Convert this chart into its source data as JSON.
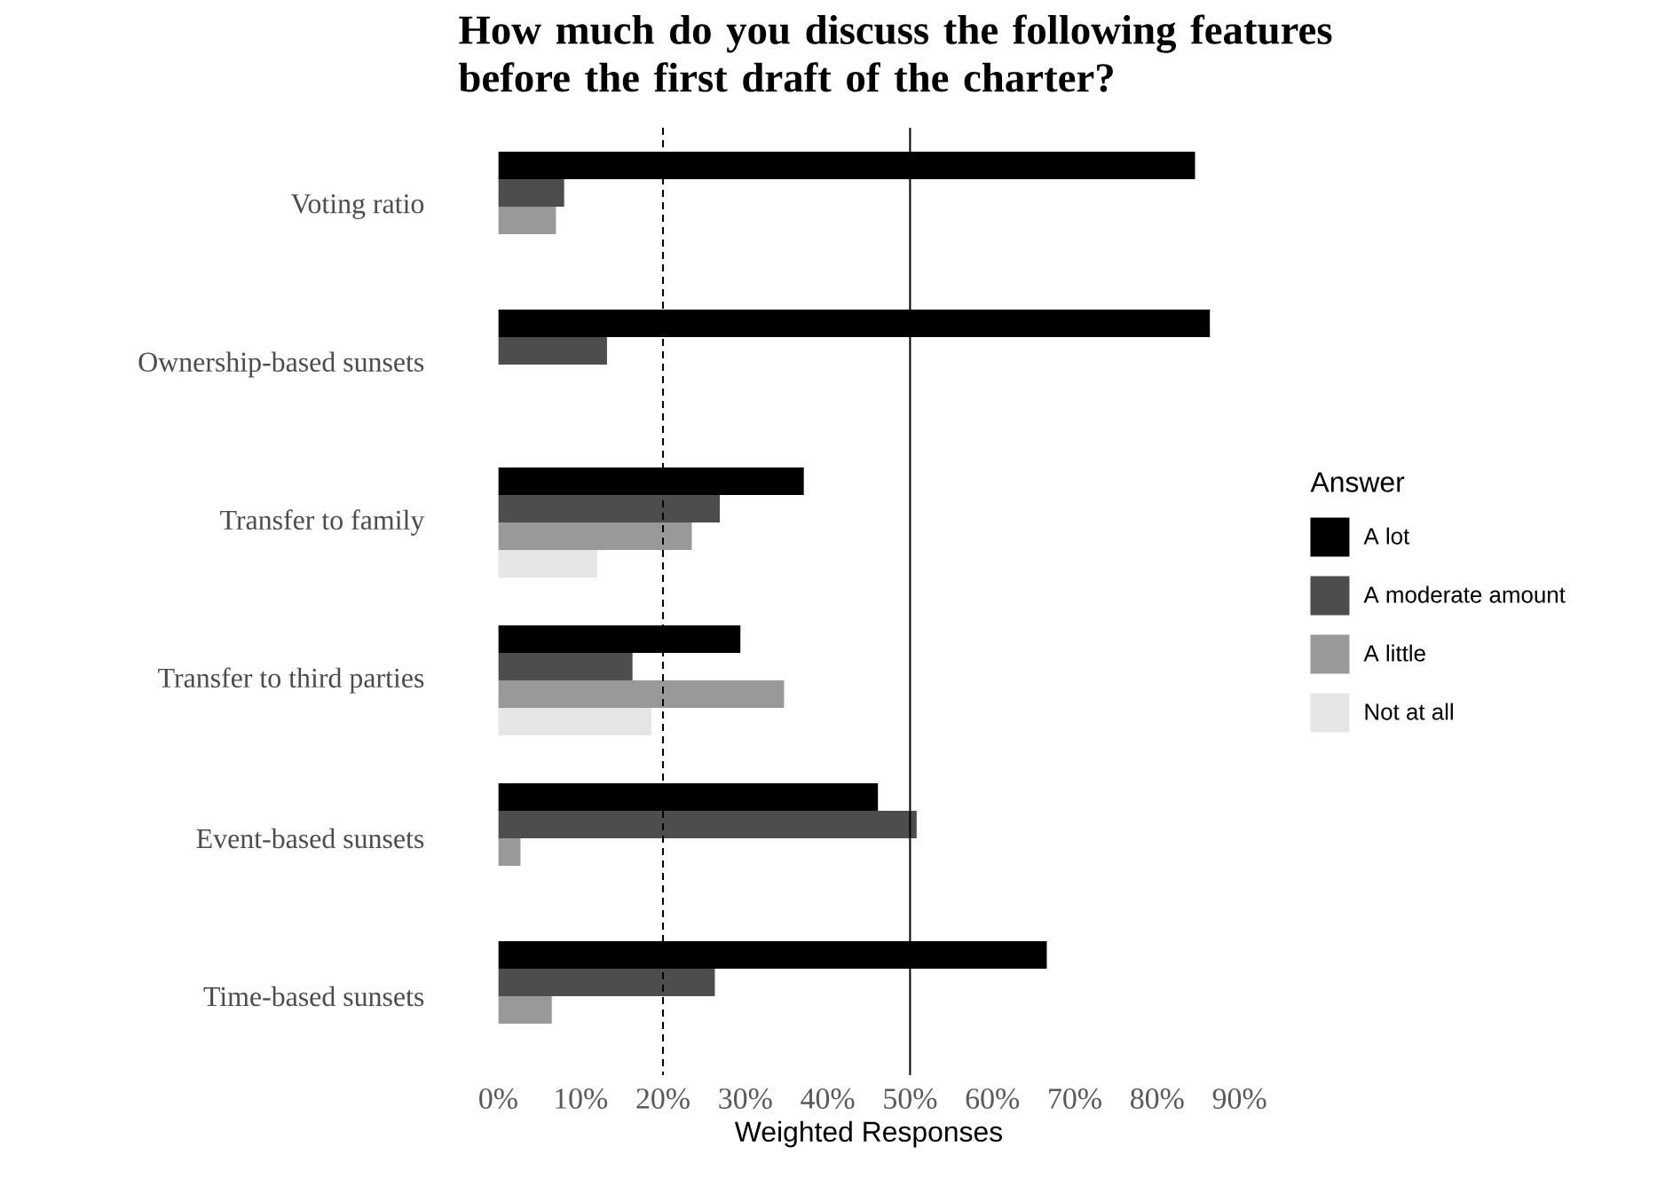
{
  "chart_data": {
    "type": "bar",
    "orientation": "horizontal",
    "title": "How much do you discuss the following features before the first draft of the charter?",
    "xlabel": "Weighted Responses",
    "legend_title": "Answer",
    "legend": "right",
    "categories": [
      "Voting ratio",
      "Ownership-based sunsets",
      "Transfer to family",
      "Transfer to third parties",
      "Event-based sunsets",
      "Time-based sunsets"
    ],
    "series": [
      {
        "name": "A lot",
        "color": "#000000",
        "values": [
          84.6,
          86.4,
          37.1,
          29.4,
          46.1,
          66.6
        ]
      },
      {
        "name": "A moderate amount",
        "color": "#4d4d4d",
        "values": [
          8.0,
          13.2,
          26.9,
          16.3,
          50.8,
          26.3
        ]
      },
      {
        "name": "A little",
        "color": "#999999",
        "values": [
          7.0,
          0,
          23.5,
          34.7,
          2.7,
          6.5
        ]
      },
      {
        "name": "Not at all",
        "color": "#e5e5e5",
        "values": [
          0,
          0,
          12.0,
          18.6,
          0,
          0
        ]
      }
    ],
    "xlim": [
      0,
      90
    ],
    "xticks": [
      {
        "value": 0,
        "label": "0%"
      },
      {
        "value": 10,
        "label": "10%"
      },
      {
        "value": 20,
        "label": "20%"
      },
      {
        "value": 30,
        "label": "30%"
      },
      {
        "value": 40,
        "label": "40%"
      },
      {
        "value": 50,
        "label": "50%"
      },
      {
        "value": 60,
        "label": "60%"
      },
      {
        "value": 70,
        "label": "70%"
      },
      {
        "value": 80,
        "label": "80%"
      },
      {
        "value": 90,
        "label": "90%"
      }
    ],
    "ref_lines": [
      {
        "axis": "x",
        "value": 20,
        "line_style": "dashed"
      },
      {
        "axis": "x",
        "value": 50,
        "line_style": "solid"
      }
    ]
  }
}
